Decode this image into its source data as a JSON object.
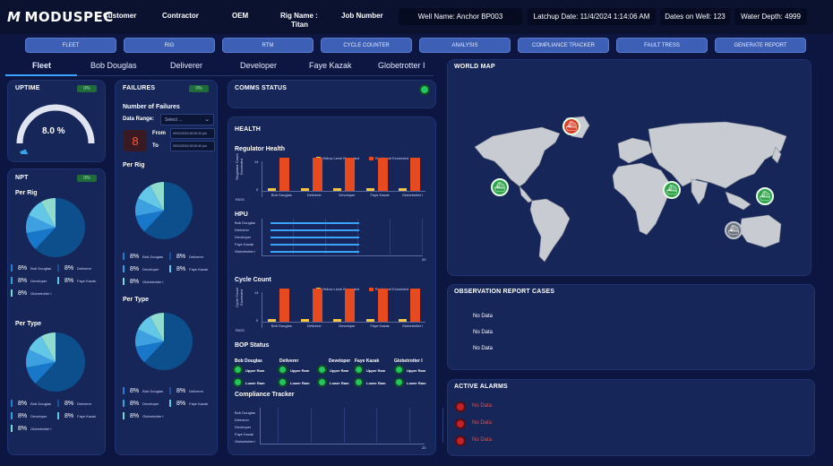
{
  "header": {
    "logo_text": "MODUSPEC",
    "logo_mark": "M",
    "customer_label": "Customer",
    "contractor_label": "Contractor",
    "oem_label": "OEM",
    "rig_name_label": "Rig Name :",
    "rig_name_value": "Titan",
    "job_number_label": "Job Number",
    "well_name": "Well Name: Anchor BP003",
    "latchup_date": "Latchup Date: 11/4/2024 1:14:06 AM",
    "dates_on_well": "Dates on Well: 123",
    "water_depth": "Water Depth: 4999"
  },
  "nav": [
    "FLEET",
    "RIG",
    "RTM",
    "CYCLE COUNTER",
    "ANALYSIS",
    "COMPLIANCE TRACKER",
    "FAULT TRESS",
    "GENERATE REPORT"
  ],
  "tabs": [
    "Fleet",
    "Bob Douglas",
    "Deliverer",
    "Developer",
    "Faye Kazak",
    "Globetrotter I"
  ],
  "uptime": {
    "title": "UPTIME",
    "badge": "0%",
    "value": "8.0 %",
    "fraction": 0.08
  },
  "npt": {
    "title": "NPT",
    "badge": "0%",
    "per_rig_label": "Per Rig",
    "per_type_label": "Per Type",
    "legend": [
      {
        "pct": "8%",
        "name": "Bob Douglas",
        "color": "#2a7bd4"
      },
      {
        "pct": "8%",
        "name": "Deliverer",
        "color": "#1b4f9a"
      },
      {
        "pct": "8%",
        "name": "Developer",
        "color": "#3aa0e0"
      },
      {
        "pct": "8%",
        "name": "Faye Kazak",
        "color": "#5cc8e8"
      },
      {
        "pct": "8%",
        "name": "Globetrotter I",
        "color": "#7ad8d0"
      }
    ]
  },
  "failures": {
    "title": "FAILURES",
    "badge": "0%",
    "number_label": "Number of Failures",
    "date_range_label": "Data Range:",
    "select_placeholder": "Select ...",
    "count": "8",
    "from_label": "From",
    "to_label": "To",
    "from_value": "09/22/2024 00:00:42 pm",
    "to_value": "09/22/2024 00:00:42 pm",
    "per_rig_label": "Per Rig",
    "per_type_label": "Per Type"
  },
  "comms": {
    "title": "COMMS STATUS"
  },
  "health": {
    "title": "HEALTH",
    "regulator_label": "Regulator Health",
    "yellow_legend": "Yellow Level Exceeded",
    "red_legend": "Red Level Exceeded",
    "y_axis_label": "Regulator Count Exceeded",
    "y_ticks": [
      "14",
      "0"
    ],
    "x_label": "RIGS",
    "categories": [
      "Bob Douglas",
      "Deliverer",
      "Developer",
      "Faye Kazak",
      "Globetrotter I"
    ],
    "regulator": {
      "yellow": [
        1,
        1,
        1,
        1,
        1
      ],
      "red": [
        13,
        13,
        13,
        13,
        13
      ],
      "max": 14
    },
    "hpu_label": "HPU",
    "hpu_values": [
      20,
      20,
      20,
      20,
      20
    ],
    "hpu_axis_max": "20",
    "cycle_label": "Cycle Count",
    "cycle_y_axis_label": "Cycle Count Exceeded",
    "cycle": {
      "yellow": [
        1,
        1,
        1,
        1,
        1
      ],
      "red": [
        13,
        13,
        13,
        13,
        13
      ],
      "max": 14
    }
  },
  "bop": {
    "title": "BOP Status",
    "rigs": [
      "Bob Douglas",
      "Deliverer",
      "Developer",
      "Faye Kazak",
      "Globetrotter I"
    ],
    "upper": "Upper Ram",
    "lower": "Lower Ram"
  },
  "compliance": {
    "title": "Compliance Tracker",
    "axis_max": "20"
  },
  "world_map": {
    "title": "WORLD MAP"
  },
  "observation": {
    "title": "OBSERVATION REPORT CASES",
    "rows": [
      "No Data",
      "No Data",
      "No Data"
    ]
  },
  "alarms": {
    "title": "ACTIVE ALARMS",
    "rows": [
      "No Data",
      "No Data",
      "No Data"
    ]
  }
}
